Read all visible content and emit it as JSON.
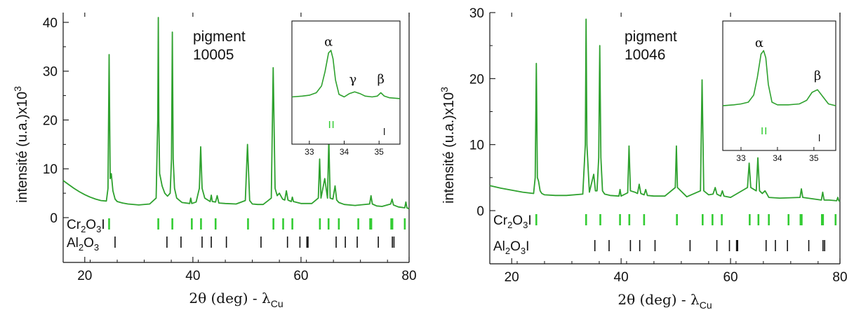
{
  "chart_data": [
    {
      "type": "line",
      "xlabel_prefix": "2θ (deg) - λ",
      "xlabel_sub": "Cu",
      "ylabel": "intensité (u.a.)x10",
      "ylabel_sup": "3",
      "xlim": [
        16,
        80
      ],
      "ylim": [
        -9,
        42
      ],
      "x_ticks": [
        20,
        40,
        60,
        80
      ],
      "y_ticks": [
        0,
        10,
        20,
        30,
        40
      ],
      "annotation": [
        "pigment",
        "10005"
      ],
      "series": [
        {
          "color": "#2ea12e",
          "x": [
            16,
            17,
            18,
            19,
            20,
            21,
            22,
            23,
            24,
            24.3,
            24.5,
            24.7,
            24.9,
            25.2,
            25.6,
            26,
            27,
            28,
            30,
            32,
            33.2,
            33.5,
            33.6,
            33.7,
            33.85,
            34,
            34.3,
            34.8,
            35.3,
            35.8,
            36.05,
            36.2,
            36.35,
            36.6,
            37,
            38,
            39.4,
            39.6,
            39.8,
            40.6,
            41.2,
            41.45,
            41.7,
            42.2,
            43.2,
            43.4,
            43.6,
            44.2,
            44.5,
            44.8,
            46,
            48,
            49.7,
            50.1,
            50.5,
            51,
            52,
            53,
            54.5,
            54.85,
            55.2,
            55.6,
            56,
            56.6,
            57,
            57.3,
            57.6,
            58.2,
            58.4,
            58.6,
            60,
            62,
            63.2,
            63.45,
            63.7,
            64.4,
            64.9,
            65.15,
            65.4,
            65.9,
            66.3,
            66.6,
            67,
            68,
            70,
            72.7,
            72.95,
            73.2,
            74,
            75,
            76.6,
            76.85,
            77.1,
            78,
            79.2,
            79.4,
            79.6,
            80
          ],
          "values": [
            7.6,
            6.8,
            6.0,
            5.3,
            4.7,
            4.2,
            3.8,
            3.5,
            3.4,
            6.0,
            33.4,
            8.0,
            9.0,
            5.5,
            3.8,
            3.3,
            3.0,
            2.8,
            2.6,
            2.8,
            4.0,
            20.0,
            41.0,
            20.0,
            9.0,
            8.2,
            6.5,
            5.0,
            4.4,
            5.0,
            12.0,
            38.0,
            12.0,
            6.0,
            4.0,
            3.1,
            2.9,
            4.0,
            2.9,
            3.2,
            6.0,
            14.5,
            6.0,
            4.0,
            3.3,
            4.6,
            3.3,
            3.2,
            4.5,
            3.0,
            2.9,
            2.8,
            3.5,
            15.0,
            3.5,
            2.8,
            2.7,
            2.7,
            4.0,
            30.7,
            6.0,
            4.5,
            5.0,
            3.8,
            3.6,
            5.5,
            3.6,
            3.3,
            4.2,
            3.3,
            2.9,
            2.9,
            4.0,
            12.0,
            4.0,
            8.0,
            4.0,
            16.0,
            4.0,
            3.8,
            6.5,
            3.6,
            3.1,
            2.7,
            2.5,
            2.8,
            4.5,
            2.8,
            2.4,
            2.3,
            2.8,
            3.8,
            2.6,
            2.2,
            2.0,
            3.2,
            2.0,
            1.8
          ]
        }
      ],
      "ticks_rows": [
        {
          "label_prefix": "Cr",
          "label_sub1": "2",
          "label_mid": "O",
          "label_sub2": "3",
          "label_suffix": "I",
          "color": "#33cc33",
          "positions": [
            24.5,
            33.6,
            36.2,
            39.8,
            41.5,
            44.2,
            50.2,
            54.9,
            56.7,
            58.4,
            63.5,
            65.1,
            67.0,
            70.6,
            72.8,
            73.0,
            76.7,
            76.9,
            79.2
          ]
        },
        {
          "label_prefix": "Al",
          "label_sub1": "2",
          "label_mid": "O",
          "label_sub2": "3",
          "label_suffix": "",
          "color": "#111111",
          "positions": [
            25.6,
            35.2,
            37.8,
            41.7,
            43.4,
            46.2,
            52.6,
            57.5,
            59.8,
            61.1,
            61.3,
            66.5,
            68.2,
            70.4,
            74.3,
            76.9,
            77.2
          ]
        }
      ],
      "inset": {
        "xlim": [
          32.5,
          35.6
        ],
        "ylim": [
          -1,
          10.5
        ],
        "x_ticks": [
          33,
          34,
          35
        ],
        "color": "#2ea12e",
        "x": [
          32.5,
          32.8,
          33.0,
          33.2,
          33.35,
          33.45,
          33.55,
          33.62,
          33.68,
          33.75,
          33.85,
          34.0,
          34.15,
          34.3,
          34.45,
          34.6,
          34.8,
          34.95,
          35.05,
          35.15,
          35.3,
          35.6
        ],
        "values": [
          4.5,
          4.6,
          4.7,
          5.0,
          5.8,
          7.5,
          9.7,
          10.0,
          9.0,
          6.5,
          4.8,
          4.5,
          4.9,
          5.1,
          4.9,
          4.6,
          4.5,
          4.6,
          5.0,
          4.6,
          4.4,
          4.3
        ],
        "labels": [
          {
            "text": "α",
            "x": 33.55,
            "y": 10.2
          },
          {
            "text": "γ",
            "x": 34.25,
            "y": 5.8
          },
          {
            "text": "β",
            "x": 35.05,
            "y": 5.8
          }
        ],
        "green_ticks": [
          33.58,
          33.68
        ],
        "black_ticks": [
          35.15
        ]
      }
    },
    {
      "type": "line",
      "xlabel_prefix": "2θ (deg) - λ",
      "xlabel_sub": "Cu",
      "ylabel": "intensité (u.a.)x10",
      "ylabel_sup": "3",
      "xlim": [
        16,
        80
      ],
      "ylim": [
        -8,
        30
      ],
      "x_ticks": [
        20,
        40,
        60,
        80
      ],
      "y_ticks": [
        0,
        10,
        20,
        30
      ],
      "annotation": [
        "pigment",
        "10046"
      ],
      "series": [
        {
          "color": "#2ea12e",
          "x": [
            16,
            18,
            20,
            22,
            24,
            24.3,
            24.5,
            24.7,
            24.9,
            25.2,
            25.5,
            26,
            28,
            30,
            33,
            33.45,
            33.6,
            33.75,
            34.2,
            35,
            35.3,
            35.6,
            35.9,
            36.1,
            36.3,
            36.6,
            37,
            38,
            39.6,
            39.8,
            40,
            41.2,
            41.45,
            41.7,
            42.5,
            43.0,
            43.3,
            43.6,
            44.2,
            44.5,
            44.8,
            46,
            48,
            49.9,
            50.1,
            50.3,
            52,
            54.5,
            54.8,
            55.1,
            56,
            56.8,
            57.2,
            57.5,
            58.2,
            58.5,
            58.8,
            60,
            63.1,
            63.4,
            63.7,
            64.7,
            65.0,
            65.3,
            65.8,
            66.3,
            66.6,
            67,
            69,
            72.7,
            72.95,
            73.2,
            76.6,
            76.85,
            77.1,
            78,
            79.4,
            79.6,
            79.8,
            80
          ],
          "values": [
            3.8,
            3.4,
            3.1,
            2.8,
            2.6,
            5.0,
            22.3,
            5.0,
            4.5,
            3.0,
            2.6,
            2.4,
            2.3,
            2.3,
            2.5,
            10.0,
            29.0,
            10.0,
            2.8,
            5.5,
            3.0,
            3.0,
            8.0,
            25.0,
            8.0,
            3.0,
            2.5,
            2.3,
            2.2,
            3.2,
            2.2,
            2.7,
            9.8,
            3.0,
            2.8,
            2.6,
            4.0,
            2.6,
            2.4,
            3.2,
            2.3,
            2.2,
            2.2,
            3.5,
            9.8,
            3.5,
            2.1,
            3.0,
            19.8,
            3.0,
            2.4,
            2.5,
            3.5,
            2.5,
            2.2,
            3.0,
            2.2,
            2.0,
            3.5,
            7.2,
            3.5,
            3.0,
            8.0,
            3.0,
            2.6,
            3.0,
            2.6,
            2.0,
            1.9,
            2.0,
            3.3,
            2.0,
            1.6,
            2.8,
            1.6,
            1.6,
            1.5,
            2.0,
            1.5,
            1.4
          ]
        }
      ],
      "ticks_rows": [
        {
          "label_prefix": "Cr",
          "label_sub1": "2",
          "label_mid": "O",
          "label_sub2": "3",
          "label_suffix": "I",
          "color": "#33cc33",
          "positions": [
            24.5,
            33.6,
            36.2,
            39.8,
            41.5,
            44.2,
            50.2,
            54.9,
            56.7,
            58.4,
            63.5,
            65.1,
            67.0,
            70.6,
            72.8,
            73.0,
            76.7,
            76.9,
            79.2
          ]
        },
        {
          "label_prefix": "Al",
          "label_sub1": "2",
          "label_mid": "O",
          "label_sub2": "3",
          "label_suffix": "I",
          "color": "#111111",
          "positions": [
            35.2,
            37.8,
            41.7,
            43.4,
            46.2,
            52.6,
            57.5,
            59.8,
            61.1,
            61.3,
            66.5,
            68.2,
            70.4,
            74.3,
            76.9,
            77.2
          ]
        }
      ],
      "inset": {
        "xlim": [
          32.5,
          35.6
        ],
        "ylim": [
          -1,
          10.5
        ],
        "x_ticks": [
          33,
          34,
          35
        ],
        "color": "#2ea12e",
        "x": [
          32.5,
          32.8,
          33.0,
          33.2,
          33.35,
          33.45,
          33.55,
          33.62,
          33.68,
          33.75,
          33.85,
          34.0,
          34.3,
          34.6,
          34.8,
          34.95,
          35.1,
          35.25,
          35.4,
          35.6
        ],
        "values": [
          3.8,
          3.9,
          4.0,
          4.2,
          5.0,
          7.0,
          9.6,
          10.0,
          9.2,
          6.2,
          4.2,
          3.9,
          3.9,
          4.0,
          4.4,
          5.3,
          5.6,
          4.8,
          4.0,
          3.8
        ],
        "labels": [
          {
            "text": "α",
            "x": 33.5,
            "y": 10.1
          },
          {
            "text": "β",
            "x": 35.1,
            "y": 6.4
          }
        ],
        "green_ticks": [
          33.58,
          33.68
        ],
        "black_ticks": [
          35.15
        ]
      }
    }
  ]
}
